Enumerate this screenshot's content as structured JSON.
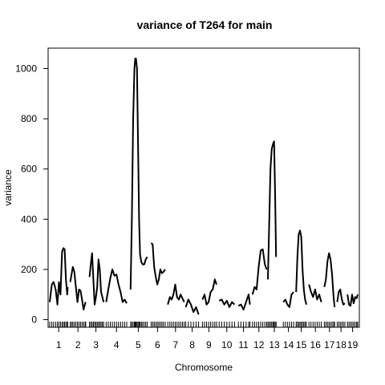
{
  "chart_data": {
    "type": "line",
    "title": "variance of T264 for main",
    "xlabel": "Chromosome",
    "ylabel": "variance",
    "ylim": [
      0,
      1080
    ],
    "yticks": [
      0,
      200,
      400,
      600,
      800,
      1000
    ],
    "xlim": [
      0,
      120
    ],
    "grid": false,
    "legend": "none",
    "color": "#000000",
    "chromosomes": [
      {
        "label": "1",
        "start": 0,
        "end": 7
      },
      {
        "label": "2",
        "start": 8,
        "end": 14
      },
      {
        "label": "3",
        "start": 15,
        "end": 21
      },
      {
        "label": "4",
        "start": 22,
        "end": 30
      },
      {
        "label": "5",
        "start": 31,
        "end": 38
      },
      {
        "label": "6",
        "start": 39,
        "end": 45
      },
      {
        "label": "7",
        "start": 46,
        "end": 52
      },
      {
        "label": "8",
        "start": 53,
        "end": 58
      },
      {
        "label": "9",
        "start": 59,
        "end": 65
      },
      {
        "label": "10",
        "start": 66,
        "end": 72
      },
      {
        "label": "11",
        "start": 73,
        "end": 78
      },
      {
        "label": "12",
        "start": 79,
        "end": 84
      },
      {
        "label": "13",
        "start": 85,
        "end": 90
      },
      {
        "label": "14",
        "start": 91,
        "end": 95
      },
      {
        "label": "15",
        "start": 96,
        "end": 100
      },
      {
        "label": "16",
        "start": 101,
        "end": 106
      },
      {
        "label": "17",
        "start": 107,
        "end": 111
      },
      {
        "label": "18",
        "start": 112,
        "end": 115
      },
      {
        "label": "19",
        "start": 116,
        "end": 120
      }
    ],
    "series": [
      {
        "chromosome": "1",
        "x": [
          0,
          0.8,
          1.5,
          2.3,
          3.0,
          3.6,
          4.2,
          4.8,
          5.3,
          5.8,
          6.3,
          6.8,
          7.0
        ],
        "y": [
          70,
          140,
          150,
          120,
          60,
          150,
          100,
          270,
          285,
          280,
          160,
          100,
          130
        ]
      },
      {
        "chromosome": "2",
        "x": [
          8.0,
          8.5,
          9.0,
          9.6,
          10.2,
          10.8,
          11.4,
          12.0,
          12.6,
          13.2,
          13.8,
          14.0
        ],
        "y": [
          150,
          180,
          210,
          190,
          130,
          70,
          120,
          115,
          80,
          40,
          65,
          70
        ]
      },
      {
        "chromosome": "3",
        "x": [
          15.5,
          16.0,
          16.5,
          17.0,
          17.5,
          18.0,
          18.5,
          19.0,
          19.5,
          20.0,
          20.5,
          21.0
        ],
        "y": [
          170,
          220,
          265,
          160,
          60,
          90,
          130,
          240,
          200,
          110,
          90,
          70
        ]
      },
      {
        "chromosome": "4",
        "x": [
          22.0,
          22.8,
          23.6,
          24.4,
          25.2,
          26.0,
          26.8,
          27.6,
          28.4,
          29.2,
          30.0
        ],
        "y": [
          70,
          120,
          165,
          200,
          175,
          180,
          140,
          110,
          70,
          80,
          65
        ]
      },
      {
        "chromosome": "5",
        "x": [
          31.5,
          32.0,
          32.5,
          33.0,
          33.3,
          33.6,
          34.0,
          34.4,
          34.8,
          35.2,
          35.7,
          36.2,
          36.8,
          37.4,
          38.0
        ],
        "y": [
          120,
          400,
          800,
          1000,
          1040,
          1040,
          1000,
          700,
          400,
          260,
          230,
          220,
          220,
          240,
          250
        ]
      },
      {
        "chromosome": "6",
        "x": [
          39.5,
          40.1,
          40.7,
          41.3,
          41.9,
          42.5,
          43.1,
          43.7,
          44.3,
          45.0
        ],
        "y": [
          305,
          300,
          210,
          170,
          140,
          160,
          200,
          185,
          190,
          200
        ]
      },
      {
        "chromosome": "7",
        "x": [
          46.0,
          46.8,
          47.5,
          48.2,
          48.9,
          49.6,
          50.3,
          51.0,
          51.7,
          52.4
        ],
        "y": [
          60,
          90,
          80,
          100,
          140,
          90,
          80,
          100,
          85,
          70
        ]
      },
      {
        "chromosome": "8",
        "x": [
          53.0,
          54.0,
          55.0,
          56.0,
          57.0,
          58.0
        ],
        "y": [
          50,
          80,
          60,
          30,
          50,
          20
        ]
      },
      {
        "chromosome": "9",
        "x": [
          59.5,
          60.3,
          61.1,
          61.9,
          62.7,
          63.5,
          64.3,
          65.0
        ],
        "y": [
          80,
          100,
          60,
          70,
          110,
          120,
          160,
          140
        ]
      },
      {
        "chromosome": "10",
        "x": [
          66.0,
          67.0,
          68.0,
          69.0,
          70.0,
          71.0,
          72.0
        ],
        "y": [
          75,
          80,
          60,
          75,
          50,
          70,
          60
        ]
      },
      {
        "chromosome": "11",
        "x": [
          73.5,
          74.5,
          75.5,
          76.5,
          77.5,
          78.0
        ],
        "y": [
          55,
          60,
          40,
          70,
          100,
          60
        ]
      },
      {
        "chromosome": "12",
        "x": [
          79.0,
          79.8,
          80.6,
          81.4,
          82.2,
          83.0,
          83.8,
          84.5
        ],
        "y": [
          100,
          130,
          120,
          210,
          275,
          280,
          220,
          200
        ]
      },
      {
        "chromosome": "13",
        "x": [
          85.0,
          85.5,
          86.0,
          86.5,
          87.0,
          87.4,
          87.8,
          88.2
        ],
        "y": [
          160,
          380,
          600,
          680,
          700,
          710,
          500,
          250
        ]
      },
      {
        "chromosome": "14",
        "x": [
          91.0,
          91.8,
          92.6,
          93.4,
          94.2,
          95.0
        ],
        "y": [
          70,
          80,
          60,
          50,
          100,
          110
        ]
      },
      {
        "chromosome": "15",
        "x": [
          96.0,
          96.5,
          97.0,
          97.5,
          98.0,
          98.5,
          99.0,
          99.5,
          100.0
        ],
        "y": [
          110,
          250,
          340,
          355,
          330,
          200,
          120,
          80,
          60
        ]
      },
      {
        "chromosome": "16",
        "x": [
          101.0,
          101.8,
          102.6,
          103.4,
          104.2,
          105.0,
          105.8
        ],
        "y": [
          140,
          110,
          90,
          120,
          80,
          100,
          70
        ]
      },
      {
        "chromosome": "17",
        "x": [
          107.0,
          107.6,
          108.2,
          108.8,
          109.4,
          110.0,
          110.6,
          111.0
        ],
        "y": [
          130,
          160,
          230,
          265,
          240,
          180,
          90,
          50
        ]
      },
      {
        "chromosome": "18",
        "x": [
          112.0,
          112.6,
          113.2,
          113.8,
          114.4,
          115.0
        ],
        "y": [
          70,
          110,
          120,
          80,
          60,
          65
        ]
      },
      {
        "chromosome": "19",
        "x": [
          116.0,
          116.6,
          117.2,
          117.8,
          118.4,
          119.0,
          119.6,
          120.0
        ],
        "y": [
          100,
          60,
          55,
          100,
          65,
          90,
          85,
          100
        ]
      }
    ]
  }
}
